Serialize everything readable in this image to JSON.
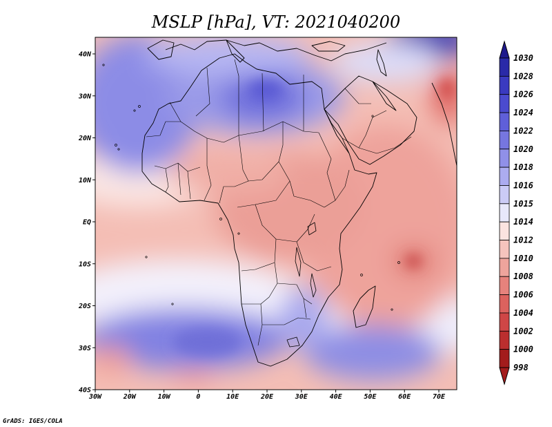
{
  "title": "MSLP [hPa], VT: 2021040200",
  "credit": "GrADS: IGES/COLA",
  "lat_labels": [
    "40N",
    "30N",
    "20N",
    "10N",
    "EQ",
    "10S",
    "20S",
    "30S",
    "40S"
  ],
  "lon_labels": [
    "30W",
    "20W",
    "10W",
    "0",
    "10E",
    "20E",
    "30E",
    "40E",
    "50E",
    "60E",
    "70E"
  ],
  "colorbar": {
    "levels": [
      "1030",
      "1028",
      "1026",
      "1024",
      "1022",
      "1020",
      "1018",
      "1016",
      "1015",
      "1014",
      "1012",
      "1010",
      "1008",
      "1006",
      "1004",
      "1002",
      "1000",
      "998"
    ],
    "colors": [
      "#1e1a8c",
      "#2a2aa8",
      "#3a3ac0",
      "#4b4bcf",
      "#5f5fd9",
      "#7676e0",
      "#9090e8",
      "#acacf0",
      "#cbcbf6",
      "#e8e8fb",
      "#fbe3e0",
      "#f6c4bd",
      "#eea49c",
      "#e6827c",
      "#dc625e",
      "#cf4646",
      "#bb2e2e",
      "#a31c1c"
    ]
  }
}
